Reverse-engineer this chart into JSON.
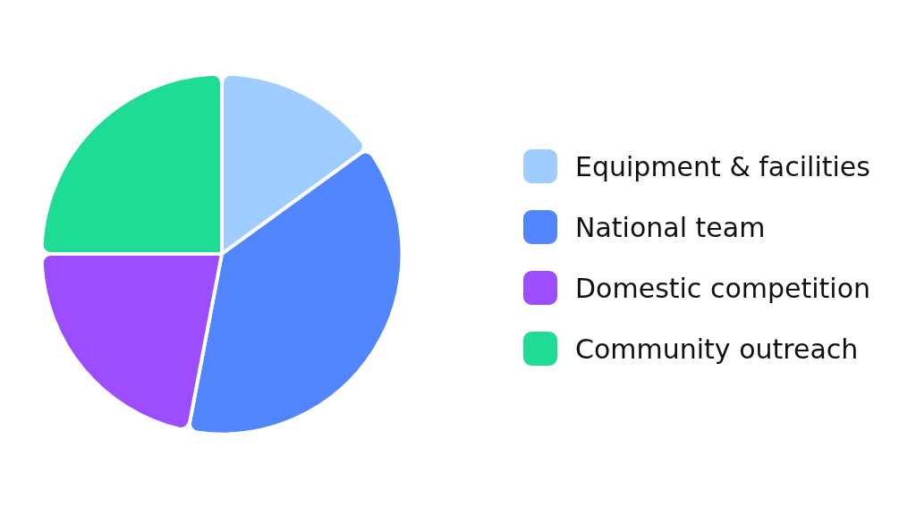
{
  "chart_data": {
    "type": "pie",
    "categories": [
      "Equipment & facilities",
      "National team",
      "Domestic competition",
      "Community outreach"
    ],
    "values": [
      15,
      38,
      22,
      25
    ],
    "colors": [
      "#9fcdff",
      "#5286ff",
      "#9b4dff",
      "#1fdc94"
    ],
    "legend": "right"
  }
}
